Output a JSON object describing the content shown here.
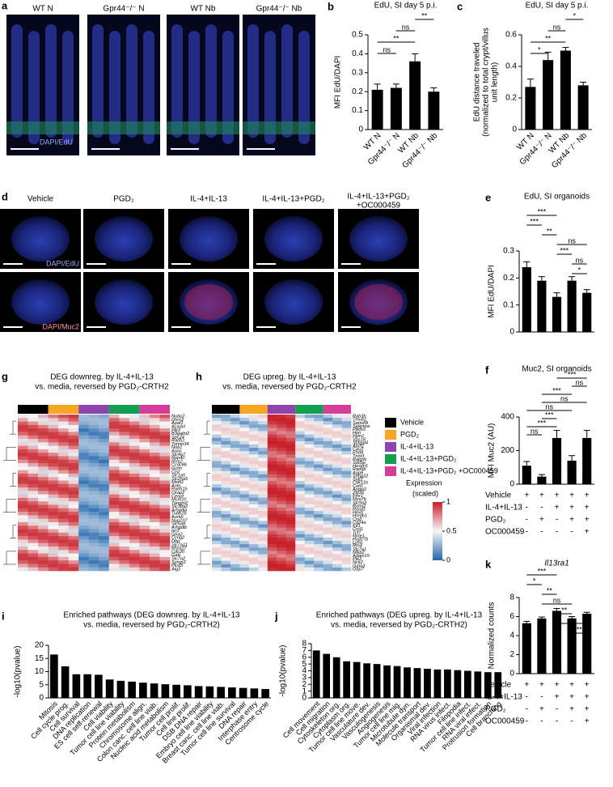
{
  "micrographs_a": {
    "panel": "a",
    "labels": [
      "WT N",
      "Gpr44⁻/⁻ N",
      "WT Nb",
      "Gpr44⁻/⁻ Nb"
    ],
    "stain": "DAPI/EdU"
  },
  "micrographs_d": {
    "panel": "d",
    "labels": [
      "Vehicle",
      "PGD₂",
      "IL-4+IL-13",
      "IL-4+IL-13+PGD₂",
      "IL-4+IL-13+PGD₂",
      "+OC000459"
    ],
    "stain_top": "DAPI/EdU",
    "stain_bottom": "DAPI/Muc2"
  },
  "heatmap_g": {
    "panel": "g",
    "title": "DEG downreg. by IL-4+IL-13",
    "subtitle": "vs. media, reversed by PGD₂-CRTH2",
    "genes": [
      "Nubp2",
      "Dhrs3",
      "Apaf1",
      "Acadvl",
      "Plk3",
      "B3galnt2",
      "Spc24",
      "Rad51",
      "Tomm34",
      "Nob1",
      "Aaas",
      "Slc4a7",
      "Rpp40",
      "Rrm2",
      "Ccdc86",
      "Gclm",
      "Ctsf",
      "Slc1a5",
      "Slc25a5",
      "Mettl1",
      "Anln",
      "Rad51b",
      "Ckap2",
      "Cenpf",
      "Mcm10",
      "Tangm2",
      "Slc38a2",
      "Arhgdia",
      "Tubb1b",
      "Aurkb",
      "Nup107",
      "Slc5a8",
      "Arhgdib",
      "Ier3",
      "Gba2",
      "Ccng2",
      "Dbp",
      "Slc7a11",
      "Mrps27",
      "Cdc20",
      "Gatc",
      "Slc7a2",
      "Syngr2",
      "Plcd3",
      "Alg2"
    ]
  },
  "heatmap_h": {
    "panel": "h",
    "title": "DEG upreg. by IL-4+IL-13",
    "subtitle": "vs. media, reversed by PGD₂-CRTH2",
    "genes": [
      "Rab3b",
      "Tmub1",
      "Samd9l",
      "Selenow",
      "Pfkfb3",
      "Hpn",
      "Irgm1",
      "Vps18",
      "St3gal4",
      "Abcf1",
      "Cav2",
      "Ehd4",
      "Tnnt3",
      "Ralgds",
      "Sdcbp",
      "Hexim1",
      "Rad9b",
      "Aqp8",
      "Snhg22",
      "Sytl2",
      "Cdk11b",
      "Cotl1",
      "Angel1",
      "Zfp36",
      "Fmr1",
      "Myo7b",
      "Slc9a3",
      "Runx2",
      "Rasd1",
      "Hexb",
      "Hmgb1",
      "Ctso",
      "Cd24a",
      "Kif1",
      "Cryl1",
      "Tcf7",
      "Nme1",
      "Hsd17b",
      "Ly6a",
      "Rtn4",
      "Slc7a1",
      "Nfkb2",
      "Adam15",
      "Ptk2",
      "Nck2",
      "Gata3",
      "Gbp7"
    ]
  },
  "legend": {
    "items": [
      {
        "name": "Vehicle",
        "color": "#000000"
      },
      {
        "name": "PGD₂",
        "color": "#f5a623"
      },
      {
        "name": "IL-4+IL-13",
        "color": "#8e44ad"
      },
      {
        "name": "IL-4+IL-13+PGD₂",
        "color": "#12a050"
      },
      {
        "name": "IL-4+IL-13+PGD₂ +OC000459",
        "color": "#d63c9a"
      }
    ]
  },
  "colorbar": {
    "title": "Expression",
    "subtitle": "(scaled)",
    "ticks": [
      1,
      0.5,
      0
    ]
  },
  "chart_data": [
    {
      "type": "bar",
      "panel": "b",
      "title": "EdU, SI day 5 p.i.",
      "ylabel": [
        "MFI EdU/DAPI"
      ],
      "categories": [
        "WT N",
        "Gpr44⁻/⁻ N",
        "WT Nb",
        "Gpr44⁻/⁻ Nb"
      ],
      "values": [
        0.21,
        0.22,
        0.36,
        0.2
      ],
      "errors": [
        0.03,
        0.02,
        0.04,
        0.02
      ],
      "color": "#000000",
      "ylim": [
        0,
        0.5
      ],
      "yticks": [
        0,
        0.1,
        0.2,
        0.3,
        0.4,
        0.5
      ],
      "brackets": [
        {
          "from": 2,
          "to": 3,
          "label": "**"
        },
        {
          "from": 1,
          "to": 2,
          "label": "ns"
        },
        {
          "from": 0,
          "to": 2,
          "label": "**"
        },
        {
          "from": 0,
          "to": 1,
          "label": "ns"
        }
      ]
    },
    {
      "type": "bar",
      "panel": "c",
      "title": "EdU, SI day 5 p.i.",
      "ylabel": [
        "EdU distance traveled",
        "(normalized to total crypt/villus",
        "unit length)"
      ],
      "categories": [
        "WT N",
        "Gpr44⁻/⁻ N",
        "WT Nb",
        "Gpr44⁻/⁻ Nb"
      ],
      "values": [
        0.27,
        0.44,
        0.5,
        0.28
      ],
      "errors": [
        0.05,
        0.05,
        0.02,
        0.02
      ],
      "color": "#000000",
      "ylim": [
        0,
        0.6
      ],
      "yticks": [
        0,
        0.2,
        0.4,
        0.6
      ],
      "brackets": [
        {
          "from": 2,
          "to": 3,
          "label": "*"
        },
        {
          "from": 1,
          "to": 2,
          "label": "ns"
        },
        {
          "from": 0,
          "to": 2,
          "label": "**"
        },
        {
          "from": 0,
          "to": 1,
          "label": "*"
        }
      ]
    },
    {
      "type": "bar",
      "panel": "e",
      "title": "EdU, SI organoids",
      "ylabel": [
        "MFI EdU/DAPI"
      ],
      "categories": [
        null,
        null,
        null,
        null,
        null
      ],
      "values": [
        0.24,
        0.19,
        0.13,
        0.19,
        0.145
      ],
      "errors": [
        0.02,
        0.015,
        0.015,
        0.015,
        0.012
      ],
      "color": "#000000",
      "ylim": [
        0,
        0.3
      ],
      "yticks": [
        0,
        0.1,
        0.2,
        0.3
      ],
      "brackets": [
        {
          "from": 0,
          "to": 2,
          "label": "***"
        },
        {
          "from": 0,
          "to": 1,
          "label": "***"
        },
        {
          "from": 1,
          "to": 2,
          "label": "**"
        },
        {
          "from": 2,
          "to": 4,
          "label": "ns"
        },
        {
          "from": 2,
          "to": 3,
          "label": "***"
        },
        {
          "from": 3,
          "to": 4,
          "label": "ns"
        },
        {
          "from": 3,
          "to": 4,
          "label": "*"
        }
      ]
    },
    {
      "type": "bar",
      "panel": "f",
      "title": "Muc2, SI organoids",
      "ylabel": [
        "MFI Muc2 (AU)"
      ],
      "categories": [
        null,
        null,
        null,
        null,
        null
      ],
      "values": [
        110,
        45,
        275,
        140,
        275
      ],
      "errors": [
        25,
        12,
        45,
        30,
        45
      ],
      "color": "#000000",
      "ylim": [
        0,
        400
      ],
      "yticks": [
        0,
        200,
        400
      ],
      "brackets": [
        {
          "from": 2,
          "to": 4,
          "label": "***"
        },
        {
          "from": 3,
          "to": 4,
          "label": "ns"
        },
        {
          "from": 1,
          "to": 3,
          "label": "***"
        },
        {
          "from": 1,
          "to": 4,
          "label": "ns"
        },
        {
          "from": 0,
          "to": 3,
          "label": "ns"
        },
        {
          "from": 1,
          "to": 2,
          "label": "***"
        },
        {
          "from": 0,
          "to": 2,
          "label": "***"
        },
        {
          "from": 0,
          "to": 1,
          "label": "ns"
        }
      ],
      "conditions": [
        {
          "name": "Vehicle",
          "signs": [
            "+",
            "+",
            "+",
            "+",
            "+"
          ]
        },
        {
          "name": "IL-4+IL-13",
          "signs": [
            "-",
            "-",
            "+",
            "+",
            "+"
          ]
        },
        {
          "name": "PGD₂",
          "signs": [
            "-",
            "+",
            "-",
            "+",
            "+"
          ]
        },
        {
          "name": "OC000459",
          "signs": [
            "-",
            "-",
            "-",
            "-",
            "+"
          ]
        }
      ]
    },
    {
      "type": "bar",
      "panel": "k",
      "title": "Il13ra1",
      "ylabel": [
        "Normalized counts"
      ],
      "categories": [
        null,
        null,
        null,
        null,
        null
      ],
      "values": [
        5.3,
        5.8,
        6.6,
        5.8,
        6.3
      ],
      "errors": [
        0.2,
        0.15,
        0.25,
        0.2,
        0.15
      ],
      "color": "#000000",
      "ylim": [
        0,
        8
      ],
      "yticks": [
        0,
        2,
        4,
        6,
        8
      ],
      "brackets": [
        {
          "from": 0,
          "to": 2,
          "label": "***"
        },
        {
          "from": 0,
          "to": 1,
          "label": "*"
        },
        {
          "from": 1,
          "to": 2,
          "label": "**"
        },
        {
          "from": 1,
          "to": 3,
          "label": "ns"
        },
        {
          "from": 2,
          "to": 3,
          "label": "**"
        },
        {
          "from": 2,
          "to": 4,
          "label": "ns"
        },
        {
          "from": 3,
          "to": 4,
          "label": "**"
        }
      ],
      "conditions": [
        {
          "name": "Vehicle",
          "signs": [
            "+",
            "+",
            "+",
            "+",
            "+"
          ]
        },
        {
          "name": "IL-4+IL-13",
          "signs": [
            "-",
            "-",
            "+",
            "+",
            "+"
          ]
        },
        {
          "name": "PGD₂",
          "signs": [
            "-",
            "+",
            "-",
            "+",
            "+"
          ]
        },
        {
          "name": "OC000459",
          "signs": [
            "-",
            "-",
            "-",
            "-",
            "+"
          ]
        }
      ]
    },
    {
      "type": "bar",
      "panel": "i",
      "title": "Enriched pathways (DEG downreg. by IL-4+IL-13",
      "subtitle": "vs. media, reversed by PGD₂-CRTH2)",
      "ylabel": [
        "-log10(pvalue)"
      ],
      "categories": [
        "Mitosis",
        "Cell cycle prog.",
        "Cell survival",
        "DNA replication",
        "ES cell self-renewal",
        "Cell viability",
        "Tumor cell line viability",
        "Protein metabolism",
        "Chromosome align.",
        "Colon canc. cell line viab.",
        "Nucleic acid metabolism",
        "Tumor cell prolif.",
        "Cell line prolif.",
        "DSB DNA repair",
        "Embryo cell line viability",
        "Breast canc. cell line viab.",
        "Tumor cell line survival",
        "DNA repair",
        "Interphase entry",
        "Centrosome cycle"
      ],
      "values": [
        16.5,
        12,
        9,
        9,
        8.8,
        7,
        6.5,
        6.2,
        5.8,
        5.5,
        5.2,
        5,
        4.8,
        4.5,
        4.4,
        4.2,
        4,
        3.8,
        3.6,
        3.4
      ],
      "color": "#000000",
      "ylim": [
        0,
        20
      ],
      "yticks": [
        0,
        5,
        10,
        15,
        20
      ]
    },
    {
      "type": "bar",
      "panel": "j",
      "title": "Enriched pathways (DEG upreg. by IL-4+IL-13",
      "subtitle": "vs. media, reversed by PGD₂-CRTH2)",
      "ylabel": [
        "-log10(pvalue)"
      ],
      "categories": [
        "Cell movement",
        "Cell migration",
        "Cytoskeleton org.",
        "Cytoplasm org.",
        "Tumor cell line move.",
        "Vasculature dev.",
        "Vasculogenesis",
        "Angiogenesis",
        "Tumor cell line mig.",
        "Microtubule dyn.",
        "Molecule transport",
        "Organismal dev.",
        "Viral infection",
        "RNA virus infect.",
        "Filopodia",
        "Tumor cell line infect.",
        "RNA viral infect.",
        "Protrusion formation",
        "Cell branching"
      ],
      "values": [
        7,
        6.5,
        6,
        5.4,
        5.3,
        5.1,
        5,
        4.8,
        4.7,
        4.5,
        4.4,
        4.3,
        4.2,
        4.2,
        4.1,
        4,
        3.9,
        3.8,
        3.8
      ],
      "color": "#000000",
      "ylim": [
        0,
        8
      ],
      "yticks": [
        0,
        1,
        2,
        3,
        4,
        5,
        6,
        7,
        8
      ]
    }
  ]
}
